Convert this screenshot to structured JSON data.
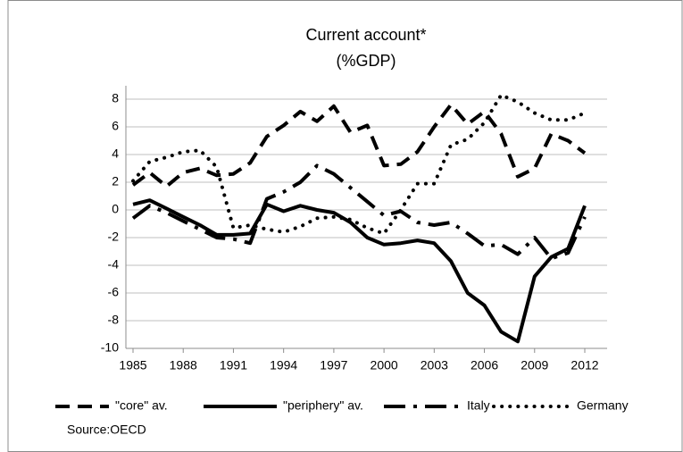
{
  "chart_data": {
    "type": "line",
    "title": "Current account*",
    "subtitle": "(%GDP)",
    "source": "Source:OECD",
    "x": [
      1985,
      1986,
      1987,
      1988,
      1989,
      1990,
      1991,
      1992,
      1993,
      1994,
      1995,
      1996,
      1997,
      1998,
      1999,
      2000,
      2001,
      2002,
      2003,
      2004,
      2005,
      2006,
      2007,
      2008,
      2009,
      2010,
      2011,
      2012
    ],
    "xlim": [
      1985,
      2012
    ],
    "xticks": [
      1985,
      1988,
      1991,
      1994,
      1997,
      2000,
      2003,
      2006,
      2009,
      2012
    ],
    "ylim": [
      -10,
      8
    ],
    "yticks": [
      -10,
      -8,
      -6,
      -4,
      -2,
      0,
      2,
      4,
      6,
      8
    ],
    "grid": true,
    "legend": "bottom",
    "series": [
      {
        "name": "\"core\" av.",
        "color": "#000000",
        "style": "dashed",
        "values": [
          1.8,
          2.7,
          1.7,
          2.7,
          3.0,
          2.5,
          2.6,
          3.4,
          5.3,
          6.1,
          7.1,
          6.4,
          7.5,
          5.6,
          6.1,
          3.2,
          3.3,
          4.2,
          6.0,
          7.6,
          6.2,
          7.1,
          5.5,
          2.4,
          3.0,
          5.5,
          5.0,
          4.1
        ]
      },
      {
        "name": "\"periphery\" av.",
        "color": "#000000",
        "style": "solid",
        "values": [
          0.4,
          0.7,
          0.1,
          -0.5,
          -1.1,
          -1.8,
          -1.8,
          -1.7,
          0.4,
          -0.1,
          0.3,
          0.0,
          -0.2,
          -0.9,
          -2.0,
          -2.5,
          -2.4,
          -2.2,
          -2.4,
          -3.7,
          -6.0,
          -6.9,
          -8.8,
          -9.5,
          -4.8,
          -3.4,
          -2.8,
          0.3
        ]
      },
      {
        "name": "Italy",
        "color": "#000000",
        "style": "dashdot",
        "values": [
          -0.6,
          0.3,
          -0.2,
          -0.8,
          -1.4,
          -2.0,
          -2.1,
          -2.4,
          0.8,
          1.3,
          2.0,
          3.2,
          2.6,
          1.6,
          0.6,
          -0.4,
          -0.1,
          -0.9,
          -1.1,
          -0.9,
          -1.7,
          -2.6,
          -2.5,
          -3.2,
          -2.0,
          -3.5,
          -3.1,
          -0.5
        ]
      },
      {
        "name": "Germany",
        "color": "#000000",
        "style": "dotted",
        "values": [
          2.1,
          3.5,
          3.8,
          4.2,
          4.3,
          3.1,
          -1.3,
          -1.1,
          -1.4,
          -1.6,
          -1.2,
          -0.6,
          -0.5,
          -0.7,
          -1.3,
          -1.7,
          0.0,
          1.9,
          1.9,
          4.7,
          5.1,
          6.3,
          8.3,
          7.8,
          7.0,
          6.5,
          6.5,
          7.0
        ]
      }
    ]
  }
}
